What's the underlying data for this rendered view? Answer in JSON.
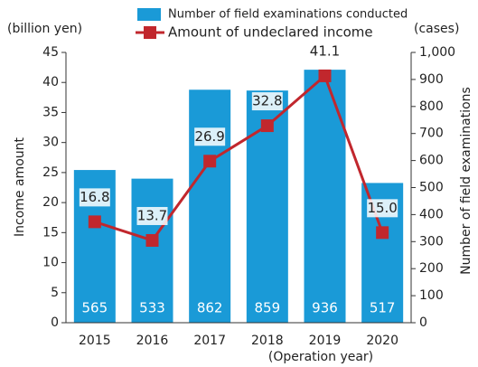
{
  "chart_data": {
    "type": "bar-line",
    "categories": [
      "2015",
      "2016",
      "2017",
      "2018",
      "2019",
      "2020"
    ],
    "x_note": "(Operation year)",
    "y_label": "Income amount",
    "y_unit": "(billion yen)",
    "y2_label": "Number of field examinations",
    "y2_unit": "(cases)",
    "ylim": [
      0,
      45
    ],
    "yticks": [
      0,
      5,
      10,
      15,
      20,
      25,
      30,
      35,
      40,
      45
    ],
    "y2lim": [
      0,
      1000
    ],
    "y2ticks": [
      0,
      100,
      200,
      300,
      400,
      500,
      600,
      700,
      800,
      900,
      {
        "value": 1000,
        "label": "1,000"
      }
    ],
    "series": [
      {
        "name": "Number of field examinations conducted",
        "type": "bar",
        "axis": "y2",
        "color": "#1a9ad7",
        "values": [
          565,
          533,
          862,
          859,
          936,
          517
        ]
      },
      {
        "name": "Amount of undeclared income",
        "type": "line",
        "color": "#c1272d",
        "values": [
          16.8,
          13.7,
          26.9,
          32.8,
          41.1,
          15.0
        ],
        "value_labels": [
          "16.8",
          "13.7",
          "26.9",
          "32.8",
          "41.1",
          "15.0"
        ]
      }
    ]
  }
}
